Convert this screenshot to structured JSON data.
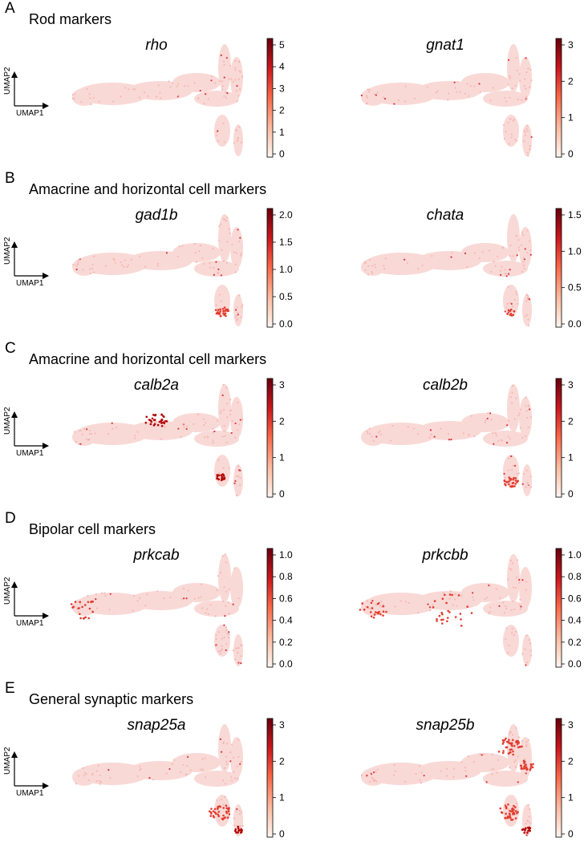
{
  "figure": {
    "axis_labels": {
      "x": "UMAP1",
      "y": "UMAP2"
    },
    "colormap": {
      "low": "#fff5f0",
      "mid1": "#fcbba1",
      "mid2": "#fb6a4a",
      "mid3": "#cb181d",
      "high": "#67000d"
    },
    "base_point_color": "#f9d9d6"
  },
  "panels": [
    {
      "letter": "A",
      "title": "Rod markers",
      "plots": [
        {
          "gene": "rho",
          "ticks": [
            "0",
            "1",
            "2",
            "3",
            "4",
            "5"
          ],
          "show_axes": true,
          "hotspots": []
        },
        {
          "gene": "gnat1",
          "ticks": [
            "0",
            "1",
            "2",
            "3"
          ],
          "show_axes": false,
          "hotspots": []
        }
      ]
    },
    {
      "letter": "B",
      "title": "Amacrine and horizontal cell markers",
      "plots": [
        {
          "gene": "gad1b",
          "ticks": [
            "0.0",
            "0.5",
            "1.0",
            "1.5",
            "2.0"
          ],
          "show_axes": true,
          "hotspots": [
            "amacrine-cluster"
          ]
        },
        {
          "gene": "chata",
          "ticks": [
            "0.0",
            "0.5",
            "1.0",
            "1.5"
          ],
          "show_axes": false,
          "hotspots": [
            "amacrine-cluster-weak"
          ]
        }
      ]
    },
    {
      "letter": "C",
      "title": "Amacrine and horizontal cell markers",
      "plots": [
        {
          "gene": "calb2a",
          "ticks": [
            "0",
            "1",
            "2",
            "3"
          ],
          "show_axes": true,
          "hotspots": [
            "mid-cluster",
            "amacrine-dark"
          ]
        },
        {
          "gene": "calb2b",
          "ticks": [
            "0",
            "1",
            "2",
            "3"
          ],
          "show_axes": false,
          "hotspots": [
            "amacrine-cluster"
          ]
        }
      ]
    },
    {
      "letter": "D",
      "title": "Bipolar cell markers",
      "plots": [
        {
          "gene": "prkcab",
          "ticks": [
            "0.0",
            "0.2",
            "0.4",
            "0.6",
            "0.8",
            "1.0"
          ],
          "show_axes": true,
          "hotspots": [
            "left-scatter"
          ]
        },
        {
          "gene": "prkcbb",
          "ticks": [
            "0.0",
            "0.2",
            "0.4",
            "0.6",
            "0.8",
            "1.0"
          ],
          "show_axes": false,
          "hotspots": [
            "left-scatter",
            "body-scatter"
          ]
        }
      ]
    },
    {
      "letter": "E",
      "title": "General synaptic markers",
      "plots": [
        {
          "gene": "snap25a",
          "ticks": [
            "0",
            "1",
            "2",
            "3"
          ],
          "show_axes": true,
          "hotspots": [
            "bottom-strong"
          ]
        },
        {
          "gene": "snap25b",
          "ticks": [
            "0",
            "1",
            "2",
            "3"
          ],
          "show_axes": false,
          "hotspots": [
            "bottom-strong",
            "upper-right-strong"
          ]
        }
      ]
    }
  ],
  "chart_data": {
    "type": "scatter",
    "description_source": "UMAP feature plots of retinal marker gene expression",
    "panels": [
      {
        "letter": "A",
        "title": "Rod markers",
        "genes": [
          {
            "name": "rho",
            "colorbar_ticks": [
              0,
              1,
              2,
              3,
              4,
              5
            ]
          },
          {
            "name": "gnat1",
            "colorbar_ticks": [
              0,
              1,
              2,
              3
            ]
          }
        ]
      },
      {
        "letter": "B",
        "title": "Amacrine and horizontal cell markers",
        "genes": [
          {
            "name": "gad1b",
            "colorbar_ticks": [
              0.0,
              0.5,
              1.0,
              1.5,
              2.0
            ]
          },
          {
            "name": "chata",
            "colorbar_ticks": [
              0.0,
              0.5,
              1.0,
              1.5
            ]
          }
        ]
      },
      {
        "letter": "C",
        "title": "Amacrine and horizontal cell markers",
        "genes": [
          {
            "name": "calb2a",
            "colorbar_ticks": [
              0,
              1,
              2,
              3
            ]
          },
          {
            "name": "calb2b",
            "colorbar_ticks": [
              0,
              1,
              2,
              3
            ]
          }
        ]
      },
      {
        "letter": "D",
        "title": "Bipolar cell markers",
        "genes": [
          {
            "name": "prkcab",
            "colorbar_ticks": [
              0.0,
              0.2,
              0.4,
              0.6,
              0.8,
              1.0
            ]
          },
          {
            "name": "prkcbb",
            "colorbar_ticks": [
              0.0,
              0.2,
              0.4,
              0.6,
              0.8,
              1.0
            ]
          }
        ]
      },
      {
        "letter": "E",
        "title": "General synaptic markers",
        "genes": [
          {
            "name": "snap25a",
            "colorbar_ticks": [
              0,
              1,
              2,
              3
            ]
          },
          {
            "name": "snap25b",
            "colorbar_ticks": [
              0,
              1,
              2,
              3
            ]
          }
        ]
      }
    ],
    "xlabel": "UMAP1",
    "ylabel": "UMAP2"
  }
}
